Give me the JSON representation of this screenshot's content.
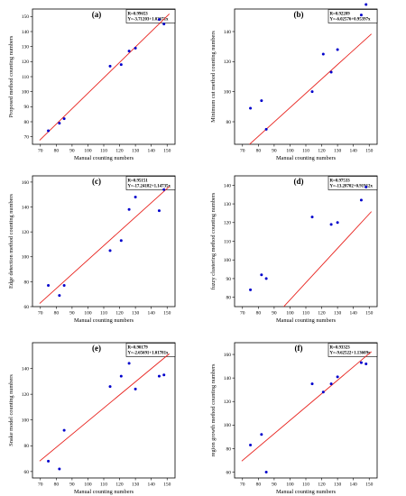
{
  "chart_data": [
    {
      "type": "scatter",
      "panel_label": "(a)",
      "xlabel": "Manual counting numbers",
      "ylabel": "Proposed method counting numbers",
      "annotation": [
        "R=0.99653",
        "Y=-3.71203+1.02671x"
      ],
      "xlim": [
        65,
        155
      ],
      "ylim": [
        65,
        155
      ],
      "xticks": [
        70,
        80,
        90,
        100,
        110,
        120,
        130,
        140,
        150
      ],
      "yticks": [
        70,
        80,
        90,
        100,
        110,
        120,
        130,
        140,
        150
      ],
      "fit": {
        "intercept": -3.71203,
        "slope": 1.02671
      },
      "points": [
        [
          75,
          74
        ],
        [
          82,
          79
        ],
        [
          85,
          82
        ],
        [
          114,
          117
        ],
        [
          121,
          118
        ],
        [
          126,
          127
        ],
        [
          130,
          129
        ],
        [
          145,
          148
        ],
        [
          148,
          145
        ]
      ],
      "marker_color": "#0000cc",
      "line_color": "#e8231e"
    },
    {
      "type": "scatter",
      "panel_label": "(b)",
      "xlabel": "Manual counting numbers",
      "ylabel": "Minimum cut method counting numbers",
      "annotation": [
        "R=0.92289",
        "Y=-6.02576+0.95397x"
      ],
      "xlim": [
        65,
        155
      ],
      "ylim": [
        65,
        155
      ],
      "xticks": [
        70,
        80,
        90,
        100,
        110,
        120,
        130,
        140,
        150
      ],
      "yticks": [
        80,
        100,
        120,
        140
      ],
      "fit": {
        "intercept": -6.02576,
        "slope": 0.95397
      },
      "points": [
        [
          75,
          89
        ],
        [
          82,
          94
        ],
        [
          85,
          75
        ],
        [
          114,
          100
        ],
        [
          121,
          125
        ],
        [
          126,
          113
        ],
        [
          130,
          128
        ],
        [
          145,
          151
        ],
        [
          148,
          158
        ]
      ],
      "marker_color": "#0000cc",
      "line_color": "#e8231e"
    },
    {
      "type": "scatter",
      "panel_label": "(c)",
      "xlabel": "Manual counting numbers",
      "ylabel": "Edge detection method counting numbers",
      "annotation": [
        "R=0.95151",
        "Y=-17.24182+1.14735x"
      ],
      "xlim": [
        65,
        155
      ],
      "ylim": [
        60,
        165
      ],
      "xticks": [
        70,
        80,
        90,
        100,
        110,
        120,
        130,
        140,
        150
      ],
      "yticks": [
        60,
        80,
        100,
        120,
        140,
        160
      ],
      "fit": {
        "intercept": -17.24182,
        "slope": 1.14735
      },
      "points": [
        [
          75,
          77
        ],
        [
          82,
          69
        ],
        [
          85,
          77
        ],
        [
          114,
          105
        ],
        [
          121,
          113
        ],
        [
          126,
          138
        ],
        [
          130,
          148
        ],
        [
          145,
          137
        ],
        [
          148,
          154
        ]
      ],
      "marker_color": "#0000cc",
      "line_color": "#e8231e"
    },
    {
      "type": "scatter",
      "panel_label": "(d)",
      "xlabel": "Manual counting numbers",
      "ylabel": "fuzzy clustering method counting numbers",
      "annotation": [
        "R=0.97533",
        "Y=-13.28702+0.91912x"
      ],
      "xlim": [
        65,
        155
      ],
      "ylim": [
        75,
        145
      ],
      "xticks": [
        70,
        80,
        90,
        100,
        110,
        120,
        130,
        140,
        150
      ],
      "yticks": [
        80,
        90,
        100,
        110,
        120,
        130,
        140
      ],
      "fit": {
        "intercept": -13.28702,
        "slope": 0.91912
      },
      "points": [
        [
          75,
          84
        ],
        [
          82,
          92
        ],
        [
          85,
          90
        ],
        [
          114,
          123
        ],
        [
          126,
          119
        ],
        [
          130,
          120
        ],
        [
          145,
          132
        ],
        [
          148,
          139
        ]
      ],
      "marker_color": "#0000cc",
      "line_color": "#e8231e"
    },
    {
      "type": "scatter",
      "panel_label": "(e)",
      "xlabel": "Manual counting numbers",
      "ylabel": "Snake model counting numbers",
      "annotation": [
        "R=0.90179",
        "Y=-2.65691+1.01781x"
      ],
      "xlim": [
        65,
        155
      ],
      "ylim": [
        55,
        160
      ],
      "xticks": [
        70,
        80,
        90,
        100,
        110,
        120,
        130,
        140,
        150
      ],
      "yticks": [
        60,
        80,
        100,
        120,
        140
      ],
      "fit": {
        "intercept": -2.65691,
        "slope": 1.01781
      },
      "points": [
        [
          75,
          68
        ],
        [
          82,
          62
        ],
        [
          85,
          92
        ],
        [
          114,
          126
        ],
        [
          121,
          134
        ],
        [
          126,
          144
        ],
        [
          130,
          124
        ],
        [
          145,
          134
        ],
        [
          148,
          135
        ]
      ],
      "marker_color": "#0000cc",
      "line_color": "#e8231e"
    },
    {
      "type": "scatter",
      "panel_label": "(f)",
      "xlabel": "Manual counting numbers",
      "ylabel": "region growth method counting numbers",
      "annotation": [
        "R=0.93323",
        "Y=-9.62522+1.13609x"
      ],
      "xlim": [
        65,
        155
      ],
      "ylim": [
        55,
        170
      ],
      "xticks": [
        70,
        80,
        90,
        100,
        110,
        120,
        130,
        140,
        150
      ],
      "yticks": [
        60,
        80,
        100,
        120,
        140,
        160
      ],
      "fit": {
        "intercept": -9.62522,
        "slope": 1.13609
      },
      "points": [
        [
          75,
          83
        ],
        [
          82,
          92
        ],
        [
          85,
          60
        ],
        [
          114,
          135
        ],
        [
          121,
          128
        ],
        [
          126,
          135
        ],
        [
          130,
          141
        ],
        [
          145,
          153
        ],
        [
          148,
          152
        ]
      ],
      "marker_color": "#0000cc",
      "line_color": "#e8231e"
    }
  ]
}
